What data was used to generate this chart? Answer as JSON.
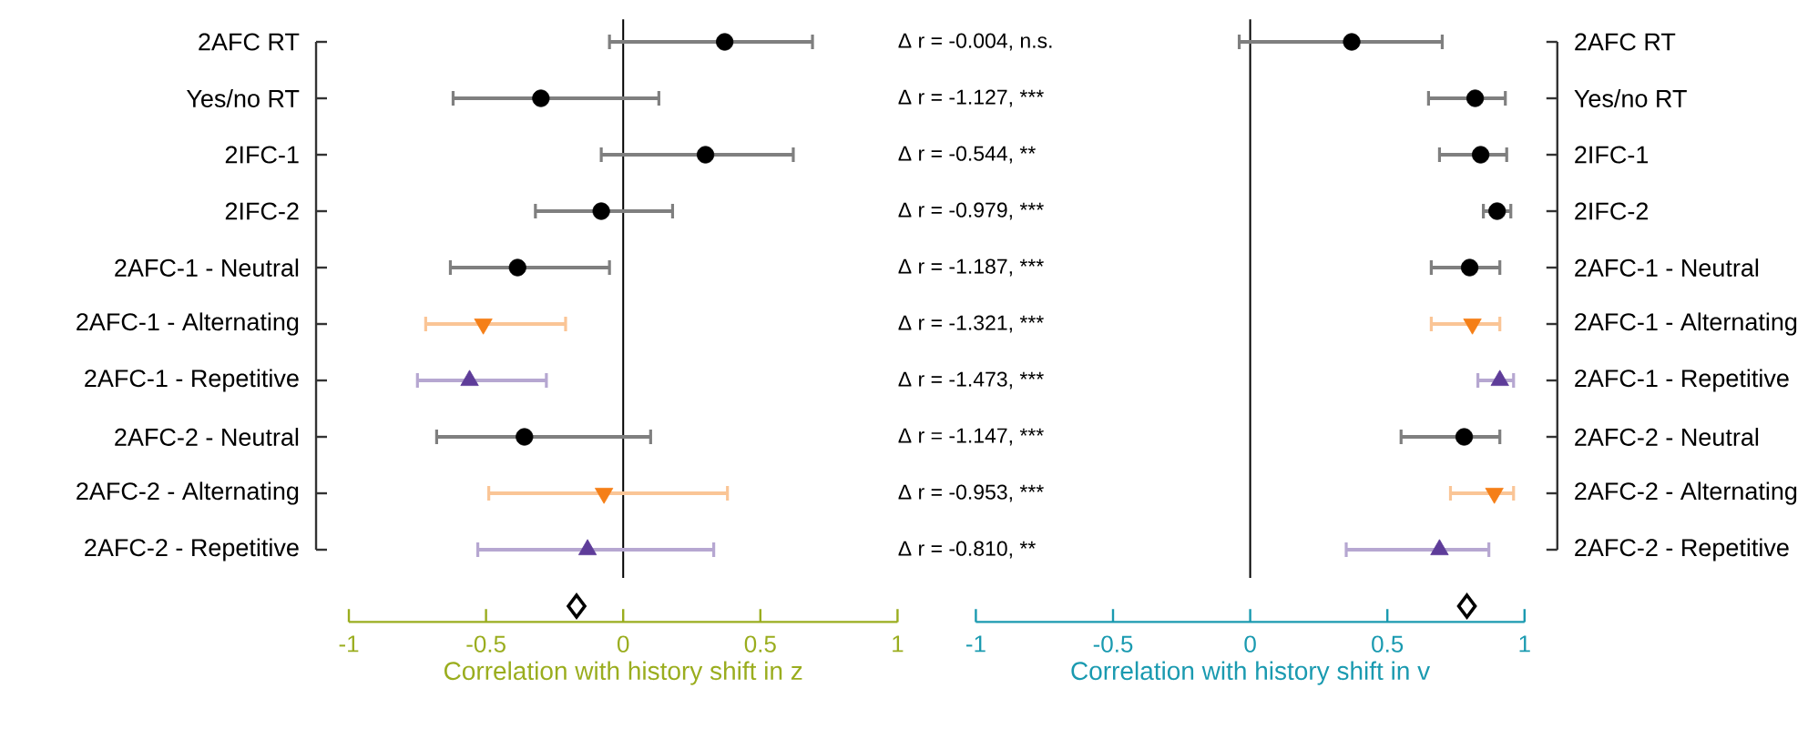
{
  "chart_data": [
    {
      "type": "scatter",
      "orientation": "horizontal",
      "categories": [
        "2AFC RT",
        "Yes/no RT",
        "2IFC-1",
        "2IFC-2",
        "2AFC-1 - Neutral",
        "2AFC-1 - Alternating",
        "2AFC-1 - Repetitive",
        "2AFC-2 - Neutral",
        "2AFC-2 - Alternating",
        "2AFC-2 - Repetitive",
        null
      ],
      "series": [
        {
          "color": "#000000",
          "marker": "circle",
          "values": [
            0.37,
            -0.3,
            0.3,
            -0.08,
            -0.385,
            null,
            null,
            -0.36,
            null,
            null,
            null
          ],
          "errors": [
            [
              -0.05,
              0.69
            ],
            [
              -0.62,
              0.13
            ],
            [
              -0.08,
              0.62
            ],
            [
              -0.32,
              0.18
            ],
            [
              -0.63,
              -0.05
            ],
            null,
            null,
            [
              -0.68,
              0.1
            ],
            null,
            null,
            null
          ]
        },
        {
          "color": "#f57f17",
          "marker": "triangle-down",
          "values": [
            null,
            null,
            null,
            null,
            null,
            -0.51,
            null,
            null,
            -0.07,
            null,
            null
          ],
          "errors": [
            null,
            null,
            null,
            null,
            null,
            [
              -0.72,
              -0.21
            ],
            null,
            null,
            [
              -0.49,
              0.38
            ],
            null,
            null
          ]
        },
        {
          "color": "#5e3c99",
          "marker": "triangle",
          "values": [
            null,
            null,
            null,
            null,
            null,
            null,
            -0.56,
            null,
            null,
            -0.13,
            null
          ],
          "errors": [
            null,
            null,
            null,
            null,
            null,
            null,
            [
              -0.75,
              -0.28
            ],
            null,
            null,
            [
              -0.53,
              0.33
            ],
            null
          ]
        },
        {
          "color": "#000000",
          "marker": "diamond",
          "values": [
            null,
            null,
            null,
            null,
            null,
            null,
            null,
            null,
            null,
            null,
            -0.17
          ]
        }
      ],
      "xlim": [
        -1,
        1
      ],
      "xticks": [
        -1,
        -0.5,
        0,
        0.5,
        1
      ],
      "xlabel": "Correlation with history shift in z",
      "ref_lines": [
        {
          "axis": "x",
          "value": 0,
          "color": "#000000"
        }
      ],
      "annotations": [
        "Δ r = -0.004, n.s.",
        "Δ r = -1.127, ***",
        "Δ r = -0.544, **",
        "Δ r = -0.979, ***",
        "Δ r = -1.187, ***",
        "Δ r = -1.321, ***",
        "Δ r = -1.473, ***",
        "Δ r = -1.147, ***",
        "Δ r = -0.953, ***",
        "Δ r = -0.810, **"
      ]
    },
    {
      "type": "scatter",
      "orientation": "horizontal",
      "categories": [
        "2AFC RT",
        "Yes/no RT",
        "2IFC-1",
        "2IFC-2",
        "2AFC-1 - Neutral",
        "2AFC-1 - Alternating",
        "2AFC-1 - Repetitive",
        "2AFC-2 - Neutral",
        "2AFC-2 - Alternating",
        "2AFC-2 - Repetitive",
        null
      ],
      "series": [
        {
          "color": "#000000",
          "marker": "circle",
          "values": [
            0.37,
            0.82,
            0.84,
            0.9,
            0.8,
            null,
            null,
            0.78,
            null,
            null,
            null
          ],
          "errors": [
            [
              -0.04,
              0.7
            ],
            [
              0.65,
              0.93
            ],
            [
              0.69,
              0.935
            ],
            [
              0.85,
              0.95
            ],
            [
              0.66,
              0.91
            ],
            null,
            null,
            [
              0.55,
              0.91
            ],
            null,
            null,
            null
          ]
        },
        {
          "color": "#f57f17",
          "marker": "triangle-down",
          "values": [
            null,
            null,
            null,
            null,
            null,
            0.81,
            null,
            null,
            0.89,
            null,
            null
          ],
          "errors": [
            null,
            null,
            null,
            null,
            null,
            [
              0.66,
              0.91
            ],
            null,
            null,
            [
              0.73,
              0.96
            ],
            null,
            null
          ]
        },
        {
          "color": "#5e3c99",
          "marker": "triangle",
          "values": [
            null,
            null,
            null,
            null,
            null,
            null,
            0.91,
            null,
            null,
            0.69,
            null
          ],
          "errors": [
            null,
            null,
            null,
            null,
            null,
            null,
            [
              0.83,
              0.96
            ],
            null,
            null,
            [
              0.35,
              0.87
            ],
            null
          ]
        },
        {
          "color": "#000000",
          "marker": "diamond",
          "values": [
            null,
            null,
            null,
            null,
            null,
            null,
            null,
            null,
            null,
            null,
            0.79
          ]
        }
      ],
      "xlim": [
        -1,
        1
      ],
      "xticks": [
        -1,
        -0.5,
        0,
        0.5,
        1
      ],
      "xlabel": "Correlation with history shift in v",
      "ref_lines": [
        {
          "axis": "x",
          "value": 0,
          "color": "#000000"
        }
      ]
    }
  ]
}
